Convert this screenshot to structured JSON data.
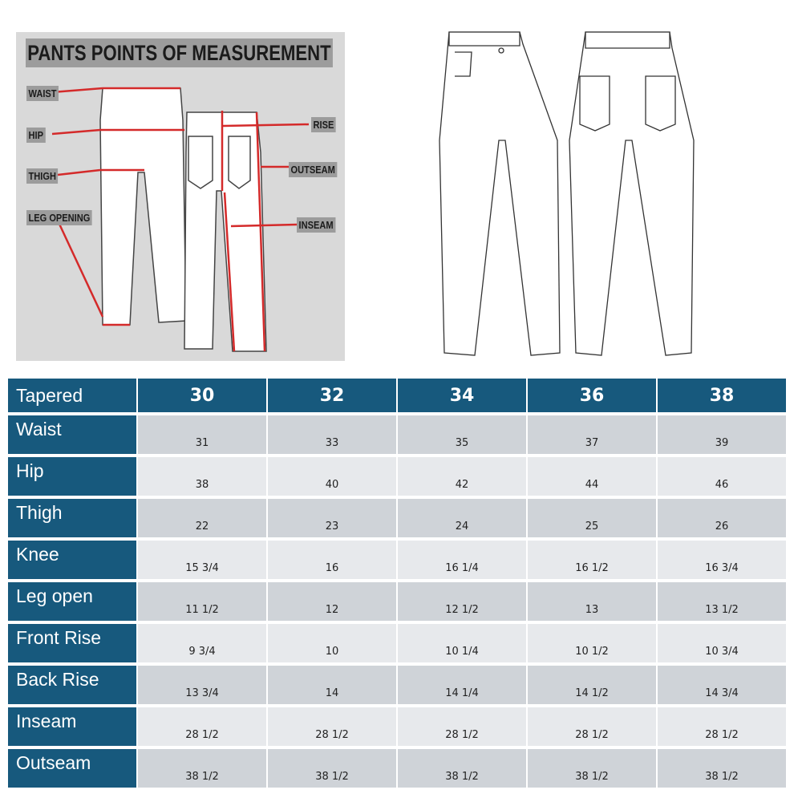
{
  "poster": {
    "title": "PANTS POINTS OF MEASUREMENT",
    "labels": {
      "waist": "WAIST",
      "hip": "HIP",
      "thigh": "THIGH",
      "leg_opening": "LEG OPENING",
      "rise": "RISE",
      "outseam": "OUTSEAM",
      "inseam": "INSEAM"
    },
    "accent_color": "#d42a2a"
  },
  "table": {
    "corner": "Tapered",
    "sizes": [
      "30",
      "32",
      "34",
      "36",
      "38"
    ],
    "header_color": "#17597d",
    "rows": [
      {
        "label": "Waist",
        "values": [
          "31",
          "33",
          "35",
          "37",
          "39"
        ]
      },
      {
        "label": "Hip",
        "values": [
          "38",
          "40",
          "42",
          "44",
          "46"
        ]
      },
      {
        "label": "Thigh",
        "values": [
          "22",
          "23",
          "24",
          "25",
          "26"
        ]
      },
      {
        "label": "Knee",
        "values": [
          "15 3/4",
          "16",
          "16 1/4",
          "16 1/2",
          "16 3/4"
        ]
      },
      {
        "label": "Leg open",
        "values": [
          "11 1/2",
          "12",
          "12 1/2",
          "13",
          "13 1/2"
        ]
      },
      {
        "label": "Front Rise",
        "values": [
          "9 3/4",
          "10",
          "10 1/4",
          "10 1/2",
          "10 3/4"
        ]
      },
      {
        "label": "Back Rise",
        "values": [
          "13 3/4",
          "14",
          "14 1/4",
          "14 1/2",
          "14 3/4"
        ]
      },
      {
        "label": "Inseam",
        "values": [
          "28 1/2",
          "28 1/2",
          "28 1/2",
          "28 1/2",
          "28 1/2"
        ]
      },
      {
        "label": "Outseam",
        "values": [
          "38 1/2",
          "38 1/2",
          "38 1/2",
          "38 1/2",
          "38 1/2"
        ]
      }
    ]
  }
}
